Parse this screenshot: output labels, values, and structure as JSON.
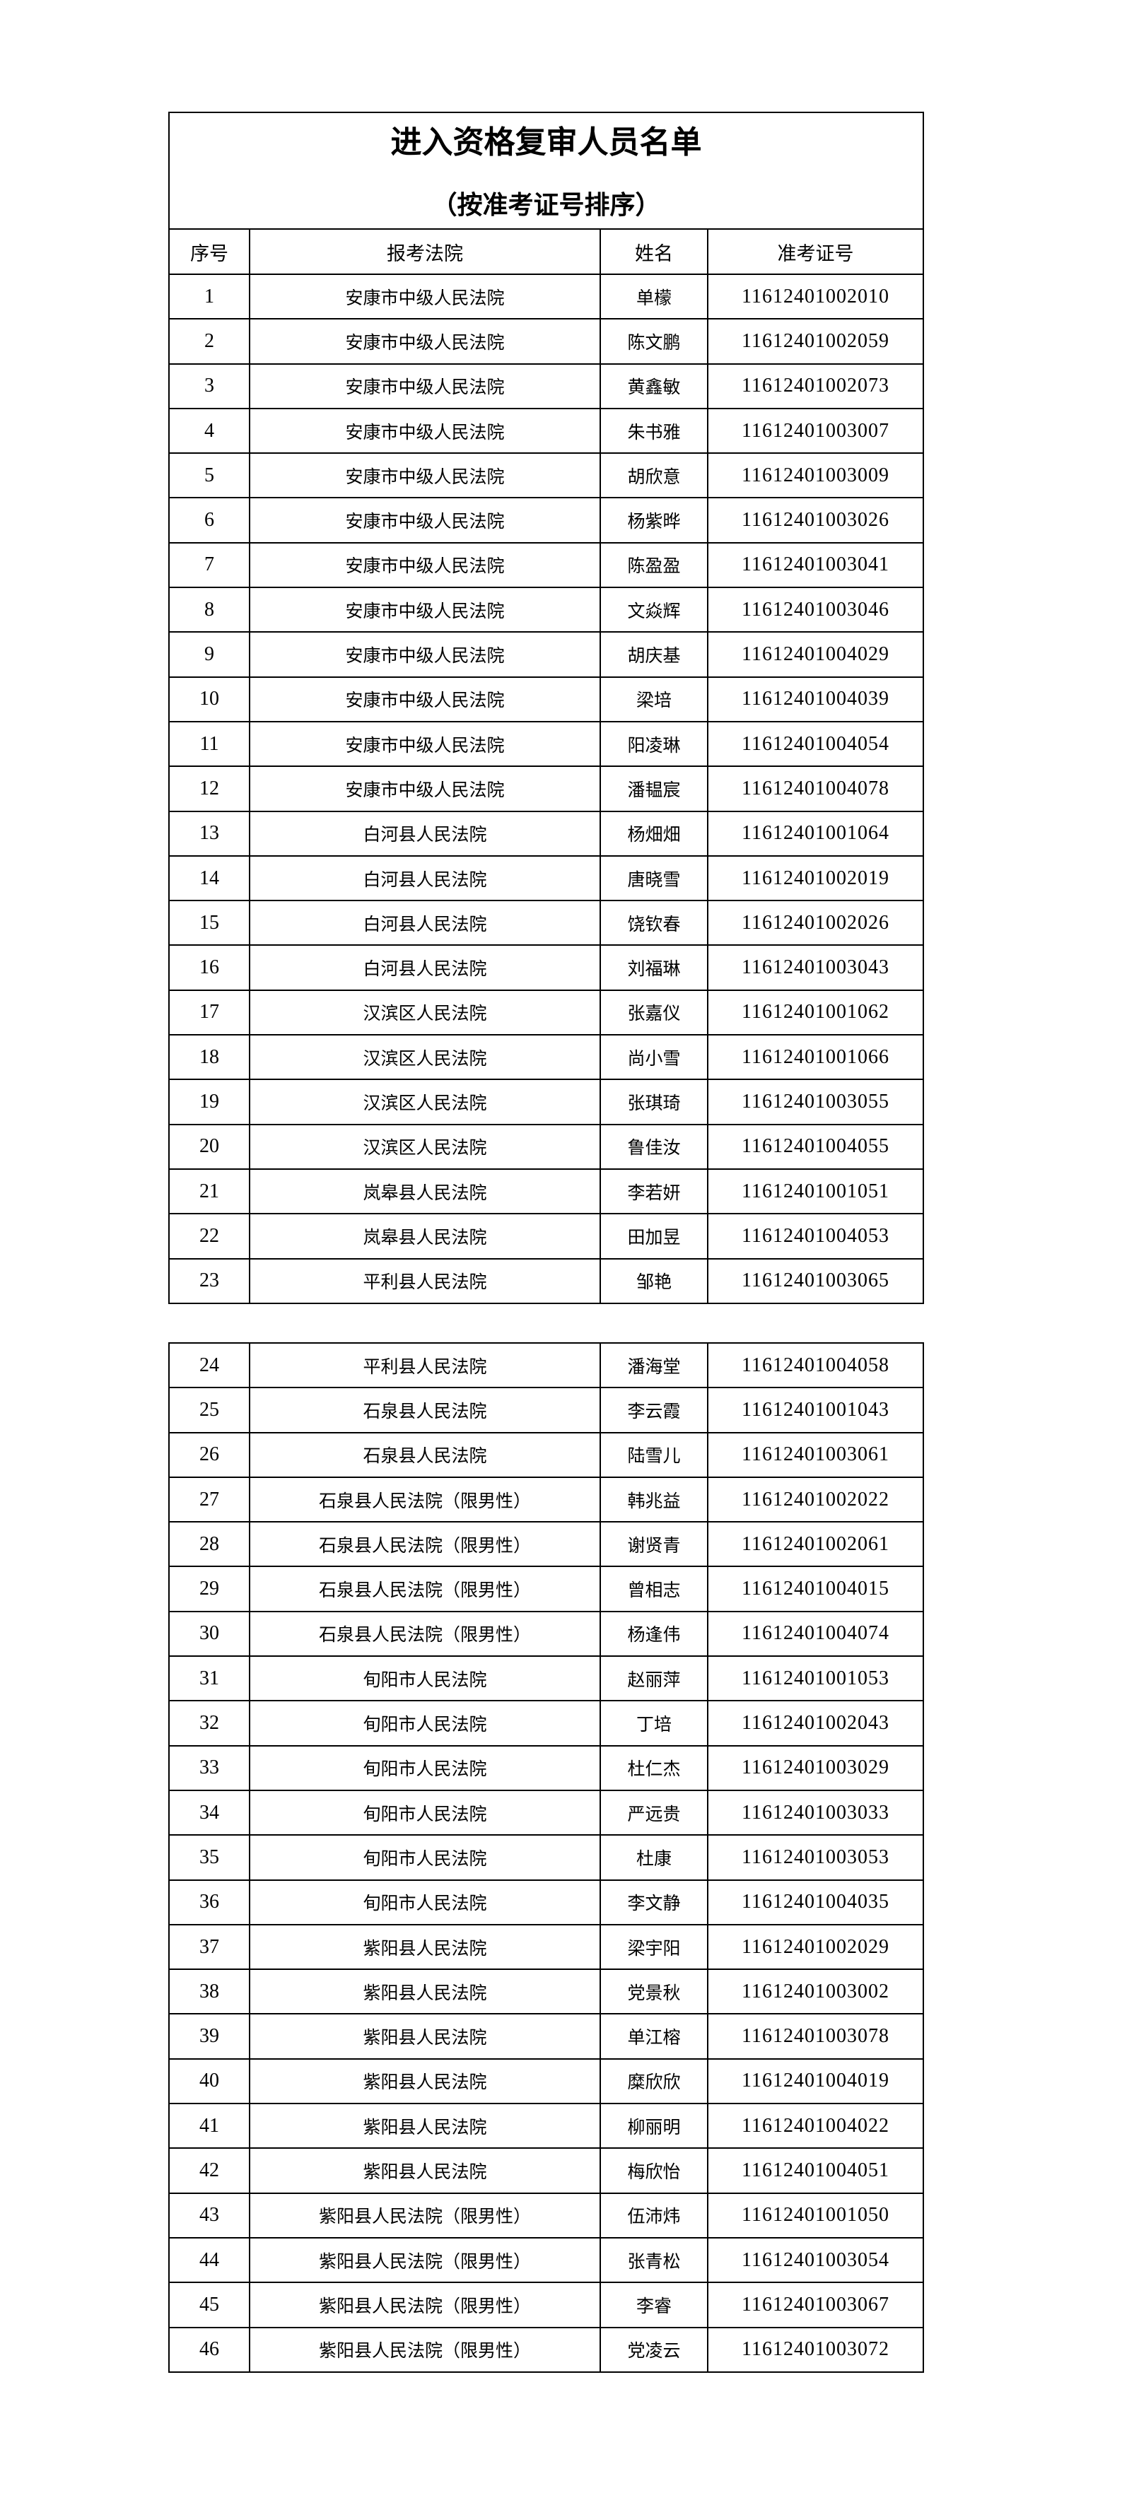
{
  "document": {
    "title": "进入资格复审人员名单",
    "subtitle": "（按准考证号排序）",
    "columns": [
      "序号",
      "报考法院",
      "姓名",
      "准考证号"
    ]
  },
  "rows": [
    [
      "1",
      "安康市中级人民法院",
      "单檬",
      "11612401002010"
    ],
    [
      "2",
      "安康市中级人民法院",
      "陈文鹏",
      "11612401002059"
    ],
    [
      "3",
      "安康市中级人民法院",
      "黄鑫敏",
      "11612401002073"
    ],
    [
      "4",
      "安康市中级人民法院",
      "朱书雅",
      "11612401003007"
    ],
    [
      "5",
      "安康市中级人民法院",
      "胡欣意",
      "11612401003009"
    ],
    [
      "6",
      "安康市中级人民法院",
      "杨紫晔",
      "11612401003026"
    ],
    [
      "7",
      "安康市中级人民法院",
      "陈盈盈",
      "11612401003041"
    ],
    [
      "8",
      "安康市中级人民法院",
      "文焱辉",
      "11612401003046"
    ],
    [
      "9",
      "安康市中级人民法院",
      "胡庆基",
      "11612401004029"
    ],
    [
      "10",
      "安康市中级人民法院",
      "梁培",
      "11612401004039"
    ],
    [
      "11",
      "安康市中级人民法院",
      "阳凌琳",
      "11612401004054"
    ],
    [
      "12",
      "安康市中级人民法院",
      "潘韫宸",
      "11612401004078"
    ],
    [
      "13",
      "白河县人民法院",
      "杨畑畑",
      "11612401001064"
    ],
    [
      "14",
      "白河县人民法院",
      "唐晓雪",
      "11612401002019"
    ],
    [
      "15",
      "白河县人民法院",
      "饶钦春",
      "11612401002026"
    ],
    [
      "16",
      "白河县人民法院",
      "刘福琳",
      "11612401003043"
    ],
    [
      "17",
      "汉滨区人民法院",
      "张嘉仪",
      "11612401001062"
    ],
    [
      "18",
      "汉滨区人民法院",
      "尚小雪",
      "11612401001066"
    ],
    [
      "19",
      "汉滨区人民法院",
      "张琪琦",
      "11612401003055"
    ],
    [
      "20",
      "汉滨区人民法院",
      "鲁佳汝",
      "11612401004055"
    ],
    [
      "21",
      "岚皋县人民法院",
      "李若妍",
      "11612401001051"
    ],
    [
      "22",
      "岚皋县人民法院",
      "田加昱",
      "11612401004053"
    ],
    [
      "23",
      "平利县人民法院",
      "邹艳",
      "11612401003065"
    ],
    [
      "24",
      "平利县人民法院",
      "潘海堂",
      "11612401004058"
    ],
    [
      "25",
      "石泉县人民法院",
      "李云霞",
      "11612401001043"
    ],
    [
      "26",
      "石泉县人民法院",
      "陆雪儿",
      "11612401003061"
    ],
    [
      "27",
      "石泉县人民法院（限男性）",
      "韩兆益",
      "11612401002022"
    ],
    [
      "28",
      "石泉县人民法院（限男性）",
      "谢贤青",
      "11612401002061"
    ],
    [
      "29",
      "石泉县人民法院（限男性）",
      "曾相志",
      "11612401004015"
    ],
    [
      "30",
      "石泉县人民法院（限男性）",
      "杨逢伟",
      "11612401004074"
    ],
    [
      "31",
      "旬阳市人民法院",
      "赵丽萍",
      "11612401001053"
    ],
    [
      "32",
      "旬阳市人民法院",
      "丁培",
      "11612401002043"
    ],
    [
      "33",
      "旬阳市人民法院",
      "杜仁杰",
      "11612401003029"
    ],
    [
      "34",
      "旬阳市人民法院",
      "严远贵",
      "11612401003033"
    ],
    [
      "35",
      "旬阳市人民法院",
      "杜康",
      "11612401003053"
    ],
    [
      "36",
      "旬阳市人民法院",
      "李文静",
      "11612401004035"
    ],
    [
      "37",
      "紫阳县人民法院",
      "梁宇阳",
      "11612401002029"
    ],
    [
      "38",
      "紫阳县人民法院",
      "党景秋",
      "11612401003002"
    ],
    [
      "39",
      "紫阳县人民法院",
      "单江榕",
      "11612401003078"
    ],
    [
      "40",
      "紫阳县人民法院",
      "糜欣欣",
      "11612401004019"
    ],
    [
      "41",
      "紫阳县人民法院",
      "柳丽明",
      "11612401004022"
    ],
    [
      "42",
      "紫阳县人民法院",
      "梅欣怡",
      "11612401004051"
    ],
    [
      "43",
      "紫阳县人民法院（限男性）",
      "伍沛炜",
      "11612401001050"
    ],
    [
      "44",
      "紫阳县人民法院（限男性）",
      "张青松",
      "11612401003054"
    ],
    [
      "45",
      "紫阳县人民法院（限男性）",
      "李睿",
      "11612401003067"
    ],
    [
      "46",
      "紫阳县人民法院（限男性）",
      "党凌云",
      "11612401003072"
    ]
  ]
}
